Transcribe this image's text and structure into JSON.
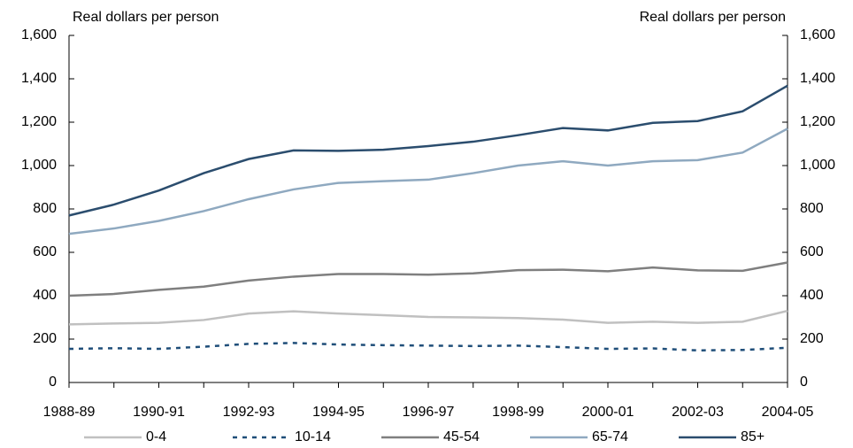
{
  "chart_data": {
    "type": "line",
    "y_label": "Real dollars per person",
    "y2_label": "Real dollars per person",
    "categories": [
      "1988-89",
      null,
      "1990-91",
      null,
      "1992-93",
      null,
      "1994-95",
      null,
      "1996-97",
      null,
      "1998-99",
      null,
      "2000-01",
      null,
      "2002-03",
      null,
      "2004-05"
    ],
    "series": [
      {
        "name": "0-4",
        "color": "#c0c0c0",
        "style": "solid",
        "values": [
          268,
          272,
          275,
          288,
          318,
          328,
          318,
          310,
          302,
          300,
          297,
          290,
          275,
          280,
          275,
          280,
          330
        ]
      },
      {
        "name": "10-14",
        "color": "#1f4e79",
        "style": "dashed",
        "values": [
          155,
          158,
          155,
          165,
          178,
          182,
          175,
          172,
          170,
          168,
          170,
          163,
          155,
          157,
          148,
          150,
          160
        ]
      },
      {
        "name": "45-54",
        "color": "#7f7f7f",
        "style": "solid",
        "values": [
          400,
          408,
          427,
          442,
          470,
          488,
          500,
          500,
          497,
          503,
          518,
          520,
          513,
          530,
          517,
          515,
          553
        ]
      },
      {
        "name": "65-74",
        "color": "#8fa9c0",
        "style": "solid",
        "values": [
          685,
          710,
          745,
          790,
          845,
          890,
          920,
          928,
          935,
          965,
          1000,
          1020,
          1000,
          1020,
          1025,
          1060,
          1170
        ]
      },
      {
        "name": "85+",
        "color": "#2b4d6e",
        "style": "solid",
        "values": [
          770,
          820,
          885,
          965,
          1030,
          1070,
          1068,
          1073,
          1090,
          1110,
          1140,
          1173,
          1162,
          1197,
          1205,
          1250,
          1368
        ]
      }
    ],
    "ylim": [
      0,
      1600
    ],
    "yticks": [
      0,
      200,
      400,
      600,
      800,
      {
        "value": 1000,
        "label": "1,000"
      },
      {
        "value": 1200,
        "label": "1,200"
      },
      {
        "value": 1400,
        "label": "1,400"
      },
      {
        "value": 1600,
        "label": "1,600"
      }
    ],
    "y2lim": [
      0,
      1600
    ],
    "y2ticks": [
      0,
      200,
      400,
      600,
      800,
      {
        "value": 1000,
        "label": "1,000"
      },
      {
        "value": 1200,
        "label": "1,200"
      },
      {
        "value": 1400,
        "label": "1,400"
      },
      {
        "value": 1600,
        "label": "1,600"
      }
    ],
    "legend": "bottom"
  }
}
